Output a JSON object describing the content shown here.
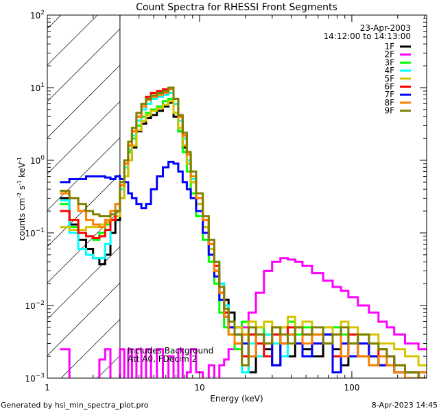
{
  "chart_data": {
    "type": "line",
    "title": "Count Spectra for RHESSI Front Segments",
    "xlabel": "Energy (keV)",
    "ylabel": "counts cm^-2 s^-1 keV^-1",
    "xscale": "log",
    "yscale": "log",
    "xlim": [
      1,
      310
    ],
    "ylim": [
      0.001,
      100
    ],
    "x_ticks": [
      {
        "v": 1,
        "label": "1"
      },
      {
        "v": 10,
        "label": "10"
      },
      {
        "v": 100,
        "label": "100"
      }
    ],
    "y_ticks": [
      {
        "v": 0.001,
        "base": "10",
        "exp": "-3"
      },
      {
        "v": 0.01,
        "base": "10",
        "exp": "-2"
      },
      {
        "v": 0.1,
        "base": "10",
        "exp": "-1"
      },
      {
        "v": 1,
        "base": "10",
        "exp": "0"
      },
      {
        "v": 10,
        "base": "10",
        "exp": "1"
      },
      {
        "v": 100,
        "base": "10",
        "exp": "2"
      }
    ],
    "hatched_region_keV": [
      1,
      3
    ],
    "date": "23-Apr-2003",
    "time_range": "14:12:00 to 14:13:00",
    "annotations": [
      "Includes Background",
      "Att A0, FDecim 2"
    ],
    "legend_position": "top-right",
    "x": [
      1.3,
      1.5,
      1.7,
      1.9,
      2.1,
      2.3,
      2.5,
      2.7,
      2.9,
      3.1,
      3.3,
      3.5,
      3.7,
      4,
      4.3,
      4.6,
      5,
      5.5,
      6,
      6.5,
      7,
      7.5,
      8,
      8.5,
      9,
      10,
      11,
      12,
      13,
      14,
      15,
      16,
      18,
      20,
      22,
      25,
      28,
      32,
      36,
      40,
      45,
      50,
      60,
      70,
      80,
      90,
      100,
      120,
      140,
      160,
      180,
      200,
      250,
      300
    ],
    "series": [
      {
        "name": "1F",
        "color": "#000000",
        "values": [
          0.3,
          0.13,
          0.08,
          0.06,
          0.045,
          0.037,
          0.05,
          0.1,
          0.15,
          0.3,
          0.6,
          1.0,
          1.5,
          2.5,
          3.2,
          3.8,
          4.2,
          4.8,
          5.5,
          6.2,
          4,
          2.5,
          1.5,
          0.9,
          0.5,
          0.25,
          0.12,
          0.06,
          0.03,
          0.02,
          0.012,
          0.008,
          0.005,
          0.004,
          0.0012,
          0.003,
          0.0025,
          0.0015,
          0.003,
          0.002,
          0.003,
          0.0025,
          0.002,
          0.003,
          0.0025,
          0.0015,
          0.003,
          0.002,
          0.002,
          0.0015,
          0.0015,
          0.0012,
          0.0012,
          0.001
        ]
      },
      {
        "name": "2F",
        "color": "#ff00ff",
        "values": [
          0.0025,
          0.0008,
          0.0008,
          0.0008,
          0.0008,
          0.0018,
          0.0025,
          0.0008,
          0.0008,
          0.0025,
          0.0008,
          0.0025,
          0.0008,
          0.0025,
          0.0008,
          0.0025,
          0.0008,
          0.0025,
          0.0008,
          0.002,
          0.0008,
          0.0025,
          0.0008,
          0.0012,
          0.0025,
          0.0012,
          0.0008,
          0.0015,
          0.0008,
          0.0015,
          0.0018,
          0.0025,
          0.003,
          0.005,
          0.008,
          0.015,
          0.03,
          0.04,
          0.045,
          0.043,
          0.04,
          0.035,
          0.028,
          0.022,
          0.018,
          0.016,
          0.013,
          0.01,
          0.008,
          0.006,
          0.005,
          0.004,
          0.003,
          0.0025
        ]
      },
      {
        "name": "3F",
        "color": "#00ff00",
        "values": [
          0.25,
          0.12,
          0.1,
          0.09,
          0.08,
          0.1,
          0.13,
          0.2,
          0.25,
          0.4,
          0.8,
          1.3,
          2.0,
          3.0,
          4.0,
          4.5,
          5.0,
          5.5,
          6.5,
          7.0,
          4.5,
          2.5,
          1.3,
          0.7,
          0.35,
          0.17,
          0.08,
          0.04,
          0.02,
          0.008,
          0.005,
          0.004,
          0.0025,
          0.006,
          0.004,
          0.005,
          0.004,
          0.003,
          0.005,
          0.006,
          0.004,
          0.005,
          0.004,
          0.003,
          0.005,
          0.004,
          0.003,
          0.004,
          0.003,
          0.0025,
          0.002,
          0.0015,
          0.0012,
          0.001
        ]
      },
      {
        "name": "4F",
        "color": "#00ffff",
        "values": [
          0.28,
          0.1,
          0.06,
          0.05,
          0.045,
          0.045,
          0.07,
          0.15,
          0.2,
          0.4,
          0.8,
          1.4,
          2.2,
          3.5,
          5.0,
          6.0,
          7.0,
          7.5,
          8.0,
          8.5,
          6,
          3.5,
          2.0,
          1.0,
          0.55,
          0.3,
          0.15,
          0.07,
          0.04,
          0.02,
          0.01,
          0.006,
          0.004,
          0.0012,
          0.003,
          0.002,
          0.004,
          0.003,
          0.002,
          0.004,
          0.003,
          0.002,
          0.003,
          0.004,
          0.002,
          0.003,
          0.002,
          0.003,
          0.0015,
          0.002,
          0.0015,
          0.0012,
          0.001,
          0.0012
        ]
      },
      {
        "name": "5F",
        "color": "#d4c400",
        "values": [
          0.12,
          0.11,
          0.11,
          0.12,
          0.12,
          0.13,
          0.14,
          0.15,
          0.17,
          0.3,
          0.6,
          1.0,
          1.6,
          2.6,
          3.5,
          4.2,
          4.8,
          5.2,
          5.8,
          6.5,
          4.5,
          2.8,
          1.6,
          0.9,
          0.5,
          0.25,
          0.12,
          0.06,
          0.03,
          0.015,
          0.008,
          0.006,
          0.005,
          0.004,
          0.006,
          0.005,
          0.006,
          0.004,
          0.005,
          0.007,
          0.005,
          0.006,
          0.004,
          0.005,
          0.004,
          0.006,
          0.005,
          0.004,
          0.004,
          0.003,
          0.003,
          0.0025,
          0.002,
          0.0015
        ]
      },
      {
        "name": "6F",
        "color": "#ff0000",
        "values": [
          0.2,
          0.15,
          0.1,
          0.09,
          0.085,
          0.09,
          0.11,
          0.15,
          0.2,
          0.45,
          0.9,
          1.6,
          2.5,
          4.0,
          6.0,
          7.5,
          8.5,
          9.0,
          9.5,
          10.0,
          7,
          4,
          2.2,
          1.2,
          0.6,
          0.3,
          0.15,
          0.07,
          0.035,
          0.015,
          0.008,
          0.005,
          0.003,
          0.002,
          0.004,
          0.003,
          0.002,
          0.004,
          0.003,
          0.005,
          0.003,
          0.004,
          0.003,
          0.004,
          0.002,
          0.003,
          0.004,
          0.003,
          0.002,
          0.0025,
          0.002,
          0.0015,
          0.0012,
          0.001
        ]
      },
      {
        "name": "7F",
        "color": "#0000ff",
        "values": [
          0.5,
          0.55,
          0.55,
          0.6,
          0.6,
          0.6,
          0.58,
          0.55,
          0.6,
          0.55,
          0.5,
          0.35,
          0.3,
          0.25,
          0.22,
          0.25,
          0.4,
          0.6,
          0.8,
          0.95,
          0.9,
          0.7,
          0.5,
          0.4,
          0.3,
          0.2,
          0.1,
          0.05,
          0.025,
          0.012,
          0.007,
          0.005,
          0.004,
          0.003,
          0.002,
          0.004,
          0.003,
          0.0015,
          0.003,
          0.004,
          0.003,
          0.002,
          0.003,
          0.004,
          0.0012,
          0.003,
          0.002,
          0.003,
          0.002,
          0.0015,
          0.002,
          0.0012,
          0.001,
          0.0012
        ]
      },
      {
        "name": "8F",
        "color": "#ff8000",
        "values": [
          0.35,
          0.3,
          0.2,
          0.15,
          0.13,
          0.12,
          0.15,
          0.2,
          0.25,
          0.45,
          0.9,
          1.6,
          2.5,
          4.0,
          5.5,
          6.8,
          7.5,
          8.0,
          8.5,
          9.5,
          7,
          4,
          2.2,
          1.2,
          0.6,
          0.3,
          0.15,
          0.07,
          0.03,
          0.015,
          0.007,
          0.004,
          0.003,
          0.004,
          0.002,
          0.004,
          0.003,
          0.005,
          0.003,
          0.004,
          0.005,
          0.003,
          0.004,
          0.003,
          0.004,
          0.002,
          0.003,
          0.002,
          0.0015,
          0.002,
          0.0015,
          0.0012,
          0.001,
          0.0012
        ]
      },
      {
        "name": "9F",
        "color": "#808000",
        "values": [
          0.38,
          0.3,
          0.25,
          0.2,
          0.18,
          0.17,
          0.17,
          0.18,
          0.2,
          0.5,
          1.0,
          1.8,
          2.8,
          4.5,
          6.0,
          7.0,
          7.8,
          8.5,
          9.0,
          10.0,
          7,
          4.2,
          2.4,
          1.3,
          0.7,
          0.35,
          0.17,
          0.08,
          0.04,
          0.018,
          0.009,
          0.006,
          0.004,
          0.0015,
          0.005,
          0.004,
          0.003,
          0.005,
          0.004,
          0.003,
          0.005,
          0.004,
          0.005,
          0.003,
          0.004,
          0.005,
          0.003,
          0.004,
          0.003,
          0.0025,
          0.002,
          0.0015,
          0.0012,
          0.001
        ]
      }
    ]
  },
  "footer": {
    "left": "Generated by hsi_min_spectra_plot.pro",
    "right": "8-Apr-2023 14:45"
  }
}
